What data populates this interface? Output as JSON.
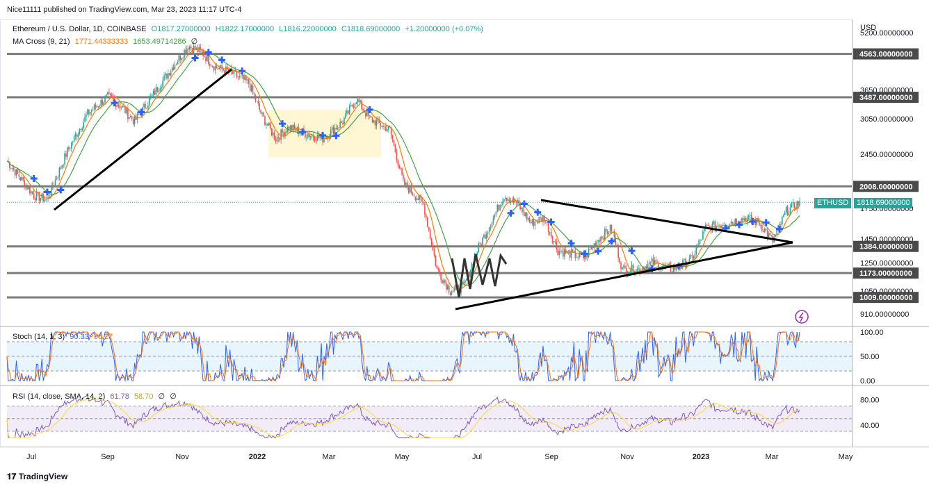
{
  "publisher": "Nice11111 published on TradingView.com, Mar 23, 2023 11:17 UTC-4",
  "symbol": {
    "title": "Ethereum / U.S. Dollar, 1D, COINBASE",
    "open": "O1817.27000000",
    "high": "H1822.17000000",
    "low": "L1816.22000000",
    "close": "C1818.69000000",
    "change": "+1.20000000 (+0.07%)"
  },
  "ma_legend": {
    "name": "MA Cross (9, 21)",
    "fast": "1771.44333333",
    "slow": "1653.49714286",
    "extra": "∅"
  },
  "stoch_legend": {
    "name": "Stoch (14, 1, 3)",
    "k": "90.33",
    "d": "86.27"
  },
  "rsi_legend": {
    "name": "RSI (14, close, SMA, 14, 2)",
    "rsi": "61.78",
    "ma": "58.70",
    "e1": "∅",
    "e2": "∅"
  },
  "currency": "USD",
  "ticker_label": "ETHUSD",
  "colors": {
    "up": "#26a69a",
    "down": "#ef5350",
    "fast_ma": "#f57c00",
    "slow_ma": "#43a047",
    "hline": "#7a7a7a",
    "stoch_k": "#2962ff",
    "stoch_d": "#ff6d00",
    "rsi": "#7e57c2",
    "rsi_ma": "#fdd835",
    "ticker": "#26a69a"
  },
  "chart_data": {
    "type": "line",
    "scale": "log",
    "x_labels": [
      "Jul",
      "Sep",
      "Nov",
      "2022",
      "Mar",
      "May",
      "Jul",
      "Sep",
      "Nov",
      "2023",
      "Mar",
      "May"
    ],
    "price_axis_labels": [
      "5200.00000000",
      "3650.00000000",
      "3050.00000000",
      "2450.00000000",
      "1750.00000000",
      "1450.00000000",
      "1250.00000000",
      "1050.00000000",
      "910.00000000"
    ],
    "horizontal_levels": [
      "4563.00000000",
      "3487.00000000",
      "2008.00000000",
      "1384.00000000",
      "1173.00000000",
      "1009.00000000"
    ],
    "last_price": "1818.69000000",
    "ylim": [
      850,
      5600
    ],
    "price_path": [
      {
        "d": 0,
        "p": 2350
      },
      {
        "d": 20,
        "p": 1900
      },
      {
        "d": 30,
        "p": 1850
      },
      {
        "d": 45,
        "p": 2500
      },
      {
        "d": 60,
        "p": 3150
      },
      {
        "d": 75,
        "p": 3500
      },
      {
        "d": 85,
        "p": 3300
      },
      {
        "d": 95,
        "p": 3000
      },
      {
        "d": 110,
        "p": 3600
      },
      {
        "d": 125,
        "p": 4300
      },
      {
        "d": 135,
        "p": 4800
      },
      {
        "d": 145,
        "p": 4600
      },
      {
        "d": 155,
        "p": 4200
      },
      {
        "d": 165,
        "p": 4100
      },
      {
        "d": 180,
        "p": 3800
      },
      {
        "d": 190,
        "p": 3100
      },
      {
        "d": 200,
        "p": 2700
      },
      {
        "d": 210,
        "p": 2900
      },
      {
        "d": 220,
        "p": 2800
      },
      {
        "d": 235,
        "p": 2700
      },
      {
        "d": 250,
        "p": 3000
      },
      {
        "d": 260,
        "p": 3450
      },
      {
        "d": 270,
        "p": 3050
      },
      {
        "d": 285,
        "p": 2850
      },
      {
        "d": 295,
        "p": 2050
      },
      {
        "d": 310,
        "p": 1800
      },
      {
        "d": 320,
        "p": 1200
      },
      {
        "d": 330,
        "p": 1050
      },
      {
        "d": 340,
        "p": 1080
      },
      {
        "d": 350,
        "p": 1350
      },
      {
        "d": 360,
        "p": 1600
      },
      {
        "d": 370,
        "p": 1900
      },
      {
        "d": 380,
        "p": 1800
      },
      {
        "d": 390,
        "p": 1600
      },
      {
        "d": 400,
        "p": 1650
      },
      {
        "d": 410,
        "p": 1350
      },
      {
        "d": 420,
        "p": 1320
      },
      {
        "d": 430,
        "p": 1290
      },
      {
        "d": 440,
        "p": 1450
      },
      {
        "d": 450,
        "p": 1550
      },
      {
        "d": 458,
        "p": 1200
      },
      {
        "d": 470,
        "p": 1200
      },
      {
        "d": 480,
        "p": 1250
      },
      {
        "d": 495,
        "p": 1200
      },
      {
        "d": 510,
        "p": 1280
      },
      {
        "d": 520,
        "p": 1550
      },
      {
        "d": 535,
        "p": 1600
      },
      {
        "d": 550,
        "p": 1650
      },
      {
        "d": 560,
        "p": 1600
      },
      {
        "d": 570,
        "p": 1430
      },
      {
        "d": 580,
        "p": 1720
      },
      {
        "d": 590,
        "p": 1818.69
      }
    ],
    "series": [
      {
        "name": "ETHUSD",
        "kind": "candles"
      },
      {
        "name": "MA 9",
        "kind": "line"
      },
      {
        "name": "MA 21",
        "kind": "line"
      }
    ]
  },
  "stoch_axis": [
    "100.00",
    "50.00",
    "0.00"
  ],
  "rsi_axis": [
    "80.00",
    "40.00"
  ]
}
